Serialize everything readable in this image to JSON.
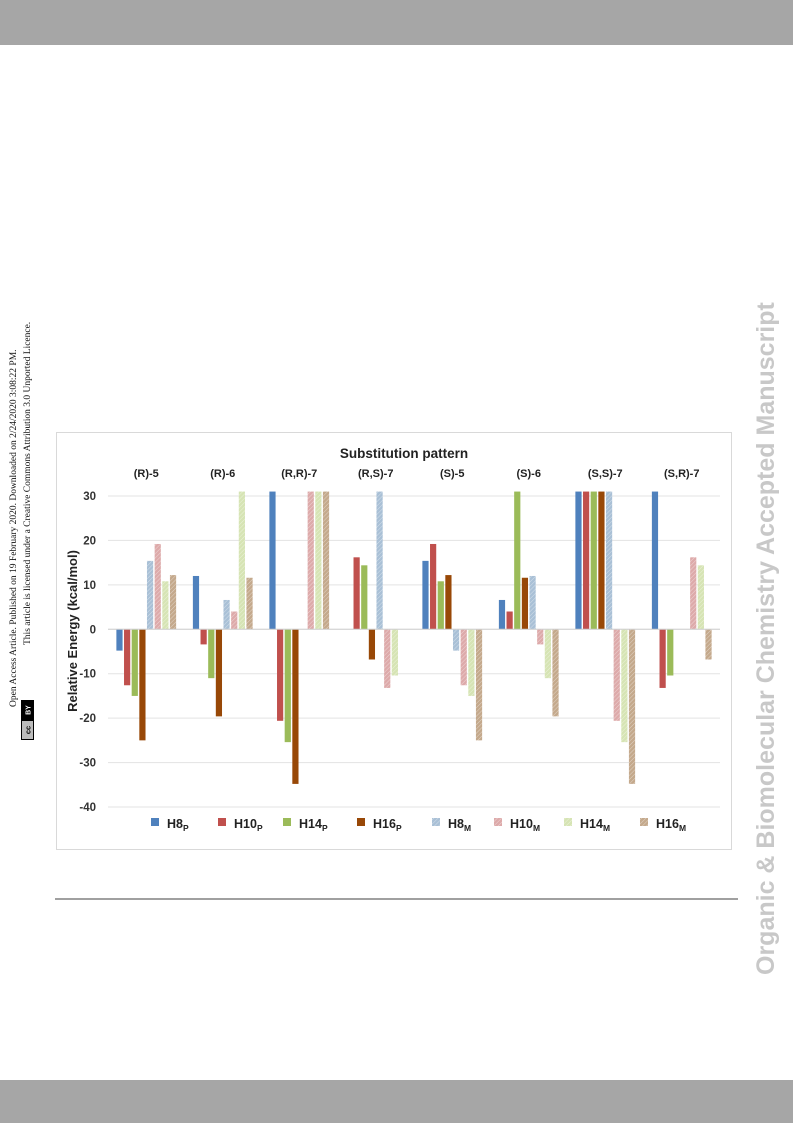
{
  "side_notice": {
    "line1": "Open Access Article. Published on 19 February 2020. Downloaded on 2/24/2020 3:08:22 PM.",
    "line2": "This article is licensed under a Creative Commons Attribution 3.0 Unported Licence.",
    "badge_left": "cc",
    "badge_right": "BY"
  },
  "journal_watermark": "Organic & Biomolecular Chemistry Accepted Manuscript",
  "chart_data": {
    "type": "bar",
    "title": "Substitution pattern",
    "ylabel": "Relative Energy (kcal/mol)",
    "xlabel": "",
    "ylim": [
      -40,
      30
    ],
    "yticks": [
      30,
      20,
      10,
      0,
      -10,
      -20,
      -30,
      -40
    ],
    "yticks_text": [
      "30",
      "20",
      "10",
      "0",
      "-10",
      "-20",
      "-30",
      "-40"
    ],
    "grid": true,
    "legend_position": "bottom",
    "categories": [
      "(R)-5",
      "(R)-6",
      "(R,R)-7",
      "(R,S)-7",
      "(S)-5",
      "(S)-6",
      "(S,S)-7",
      "(S,R)-7"
    ],
    "series": [
      {
        "name": "H8",
        "sub": "P",
        "color": "#4f81bd",
        "pattern": "solid",
        "values": [
          -4.8,
          12,
          31,
          0,
          15.4,
          6.6,
          31,
          31
        ]
      },
      {
        "name": "H10",
        "sub": "P",
        "color": "#c0504d",
        "pattern": "solid",
        "values": [
          -12.6,
          -3.4,
          -20.6,
          16.2,
          19.2,
          4,
          31,
          -13.2
        ]
      },
      {
        "name": "H14",
        "sub": "P",
        "color": "#9bbb59",
        "pattern": "solid",
        "values": [
          -15,
          -11,
          -25.4,
          14.4,
          10.8,
          31,
          31,
          -10.4
        ]
      },
      {
        "name": "H16",
        "sub": "P",
        "color": "#984807",
        "pattern": "solid",
        "values": [
          -25,
          -19.6,
          -34.8,
          -6.8,
          12.2,
          11.6,
          31,
          0
        ]
      },
      {
        "name": "H8",
        "sub": "M",
        "color": "#a9c0d6",
        "pattern": "hatch",
        "values": [
          15.4,
          6.6,
          0,
          31,
          -4.8,
          12,
          31,
          0
        ]
      },
      {
        "name": "H10",
        "sub": "M",
        "color": "#ddaaaa",
        "pattern": "hatch",
        "values": [
          19.2,
          4,
          31,
          -13.2,
          -12.6,
          -3.4,
          -20.6,
          16.2
        ]
      },
      {
        "name": "H14",
        "sub": "M",
        "color": "#d6e4b4",
        "pattern": "hatch",
        "values": [
          10.8,
          31,
          31,
          -10.4,
          -15,
          -11,
          -25.4,
          14.4
        ]
      },
      {
        "name": "H16",
        "sub": "M",
        "color": "#c4a98c",
        "pattern": "hatch",
        "values": [
          12.2,
          11.6,
          31,
          0,
          -25,
          -19.6,
          -34.8,
          -6.8
        ]
      }
    ]
  }
}
